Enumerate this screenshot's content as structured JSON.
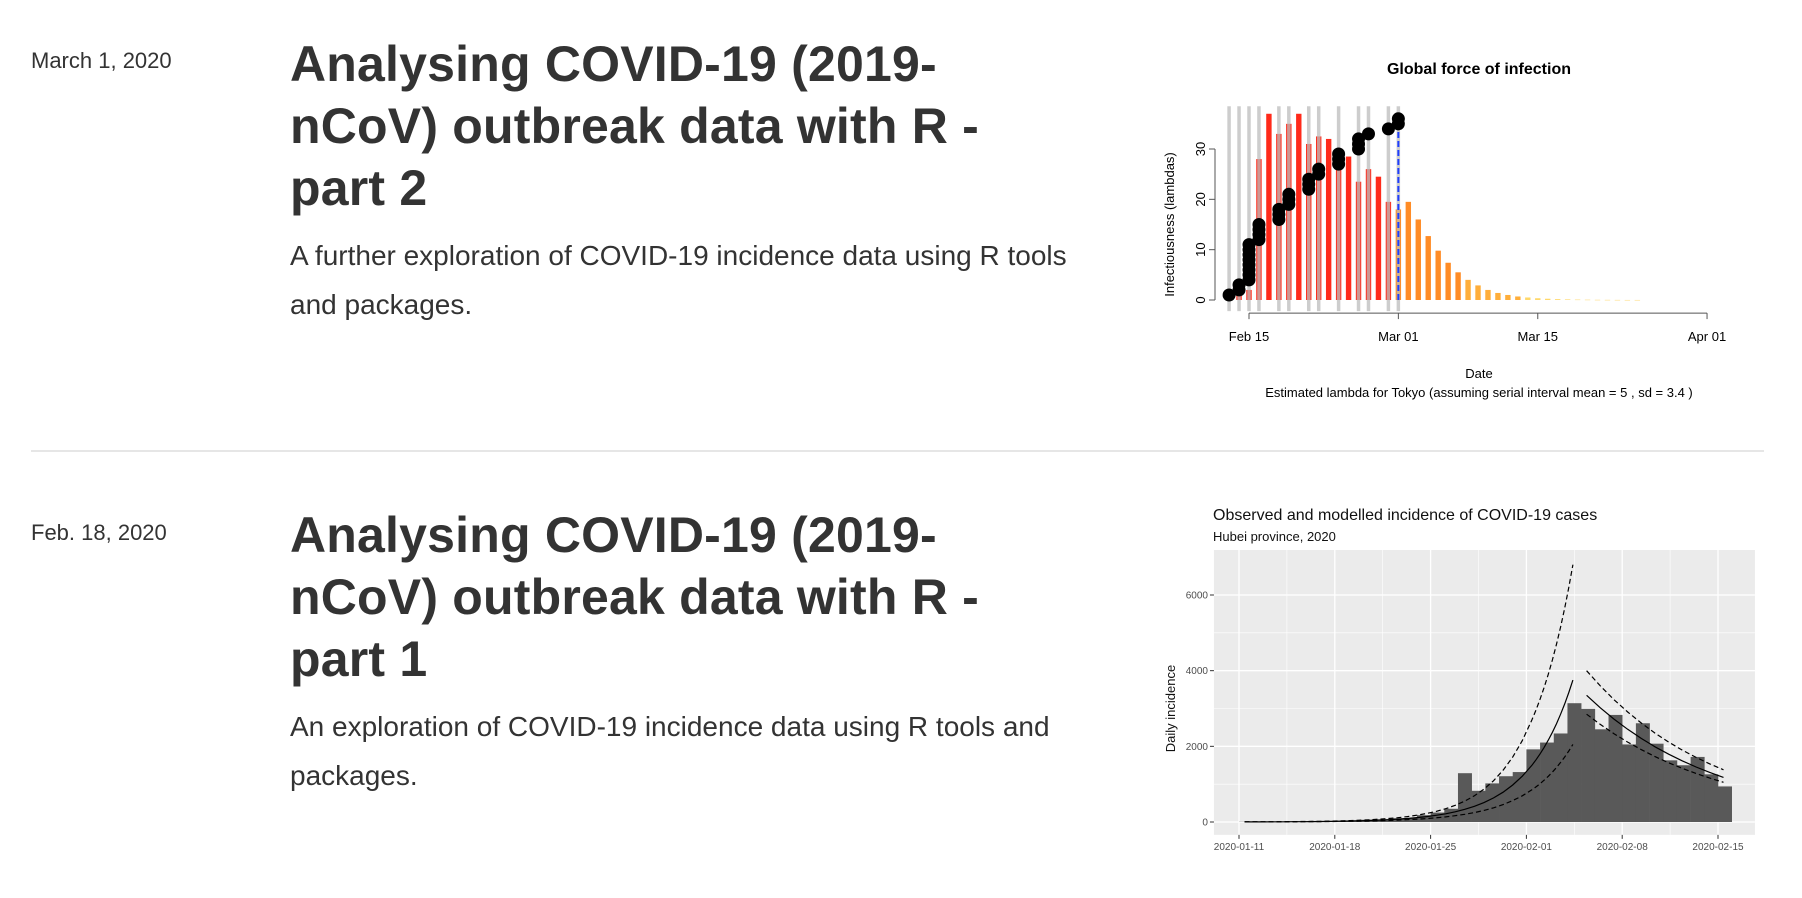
{
  "posts": [
    {
      "date": "March 1, 2020",
      "title": "Analysing COVID-19 (2019-nCoV) outbreak data with R - part 2",
      "description": "A further exploration of COVID-19 incidence data using R tools and packages."
    },
    {
      "date": "Feb. 18, 2020",
      "title": "Analysing COVID-19 (2019-nCoV) outbreak data with R - part 1",
      "description": "An exploration of COVID-19 incidence data using R tools and packages."
    }
  ],
  "chart_data": [
    {
      "type": "bar",
      "title": "Global force of infection",
      "xlabel": "Date",
      "ylabel": "Infectiousness (lambdas)",
      "caption": "Estimated lambda for Tokyo (assuming serial interval mean = 5 , sd = 3.4 )",
      "x_ticks": [
        "Feb 15",
        "Mar 01",
        "Mar 15",
        "Apr 01"
      ],
      "x_tick_dates": [
        "2020-02-15",
        "2020-03-01",
        "2020-03-15",
        "2020-04-01"
      ],
      "y_ticks": [
        0,
        10,
        20,
        30
      ],
      "ylim": [
        0,
        38
      ],
      "grid": false,
      "lambda": {
        "dates": [
          "2020-02-13",
          "2020-02-14",
          "2020-02-15",
          "2020-02-16",
          "2020-02-17",
          "2020-02-18",
          "2020-02-19",
          "2020-02-20",
          "2020-02-21",
          "2020-02-22",
          "2020-02-23",
          "2020-02-24",
          "2020-02-25",
          "2020-02-26",
          "2020-02-27",
          "2020-02-28",
          "2020-02-29",
          "2020-03-01",
          "2020-03-02",
          "2020-03-03",
          "2020-03-04",
          "2020-03-05",
          "2020-03-06",
          "2020-03-07",
          "2020-03-08",
          "2020-03-09",
          "2020-03-10",
          "2020-03-11",
          "2020-03-12",
          "2020-03-13",
          "2020-03-14",
          "2020-03-15",
          "2020-03-16",
          "2020-03-17",
          "2020-03-18",
          "2020-03-19",
          "2020-03-20",
          "2020-03-21",
          "2020-03-22",
          "2020-03-23",
          "2020-03-24",
          "2020-03-25"
        ],
        "values": [
          0.5,
          1,
          2,
          28,
          37,
          33,
          35,
          37,
          31,
          32.5,
          32,
          30,
          28.5,
          23.5,
          26,
          24.5,
          19.5,
          18,
          19.5,
          16,
          12.7,
          9.8,
          7.4,
          5.5,
          4,
          2.9,
          2,
          1.4,
          1,
          0.7,
          0.5,
          0.35,
          0.25,
          0.17,
          0.12,
          0.08,
          0.06,
          0.04,
          0.03,
          0.02,
          0.01,
          0.01
        ]
      },
      "observed_case_dates": [
        "2020-02-13",
        "2020-02-14",
        "2020-02-15",
        "2020-02-16",
        "2020-02-18",
        "2020-02-19",
        "2020-02-21",
        "2020-02-22",
        "2020-02-24",
        "2020-02-26",
        "2020-02-27",
        "2020-02-29",
        "2020-03-01"
      ],
      "cumulative_cases": [
        {
          "date": "2020-02-13",
          "values": [
            1
          ]
        },
        {
          "date": "2020-02-14",
          "values": [
            2,
            3
          ]
        },
        {
          "date": "2020-02-15",
          "values": [
            4,
            5,
            6,
            7,
            8,
            9,
            10,
            11
          ]
        },
        {
          "date": "2020-02-16",
          "values": [
            12,
            13,
            14,
            15
          ]
        },
        {
          "date": "2020-02-18",
          "values": [
            16,
            17,
            18
          ]
        },
        {
          "date": "2020-02-19",
          "values": [
            19,
            20,
            21
          ]
        },
        {
          "date": "2020-02-21",
          "values": [
            22,
            23,
            24
          ]
        },
        {
          "date": "2020-02-22",
          "values": [
            25,
            26
          ]
        },
        {
          "date": "2020-02-24",
          "values": [
            27,
            28,
            29
          ]
        },
        {
          "date": "2020-02-26",
          "values": [
            30,
            31,
            32
          ]
        },
        {
          "date": "2020-02-27",
          "values": [
            33
          ]
        },
        {
          "date": "2020-02-29",
          "values": [
            34
          ]
        },
        {
          "date": "2020-03-01",
          "values": [
            35,
            36
          ]
        }
      ],
      "current_date": "2020-03-01",
      "colors": {
        "observed_line": "#bdbdbd",
        "current_date_line": "#1f3fff",
        "points": "#000000",
        "bar_high": "#ff2a1a",
        "bar_mid": "#ff8a1f",
        "bar_low": "#ffe680"
      }
    },
    {
      "type": "bar",
      "title": "Observed and modelled incidence of COVID-19 cases",
      "subtitle": "Hubei province, 2020",
      "ylabel": "Daily incidence",
      "x_ticks": [
        "2020-01-11",
        "2020-01-18",
        "2020-01-25",
        "2020-02-01",
        "2020-02-08",
        "2020-02-15"
      ],
      "y_ticks": [
        0,
        2000,
        4000,
        6000
      ],
      "ylim": [
        -340,
        7190
      ],
      "grid": true,
      "observed": {
        "start_date": "2020-01-11",
        "values": [
          5,
          8,
          10,
          12,
          15,
          20,
          25,
          35,
          45,
          60,
          70,
          100,
          105,
          180,
          250,
          350,
          1290,
          825,
          1020,
          1210,
          1320,
          1920,
          2100,
          2340,
          3140,
          2990,
          2450,
          2830,
          2050,
          2610,
          2070,
          1630,
          1500,
          1720,
          1260,
          940
        ]
      },
      "model": {
        "growth": {
          "fit": [
            [
              "2020-01-11",
              2.5
            ],
            [
              "2020-01-18",
              21
            ],
            [
              "2020-01-25",
              176
            ],
            [
              "2020-02-01",
              1500
            ],
            [
              "2020-02-04",
              3750
            ]
          ],
          "upper": [
            [
              "2020-01-11",
              3
            ],
            [
              "2020-01-18",
              30
            ],
            [
              "2020-01-25",
              280
            ],
            [
              "2020-02-01",
              2700
            ],
            [
              "2020-02-04",
              6800
            ]
          ],
          "lower": [
            [
              "2020-01-11",
              2
            ],
            [
              "2020-01-18",
              15
            ],
            [
              "2020-01-25",
              110
            ],
            [
              "2020-02-01",
              850
            ],
            [
              "2020-02-04",
              2050
            ]
          ]
        },
        "decay": {
          "fit": [
            [
              "2020-02-05",
              3350
            ],
            [
              "2020-02-15",
              1180
            ]
          ],
          "upper": [
            [
              "2020-02-05",
              4000
            ],
            [
              "2020-02-15",
              1380
            ]
          ],
          "lower": [
            [
              "2020-02-05",
              2850
            ],
            [
              "2020-02-15",
              1050
            ]
          ]
        }
      },
      "colors": {
        "panel": "#ebebeb",
        "bars": "#595959",
        "grid": "#ffffff"
      }
    }
  ]
}
